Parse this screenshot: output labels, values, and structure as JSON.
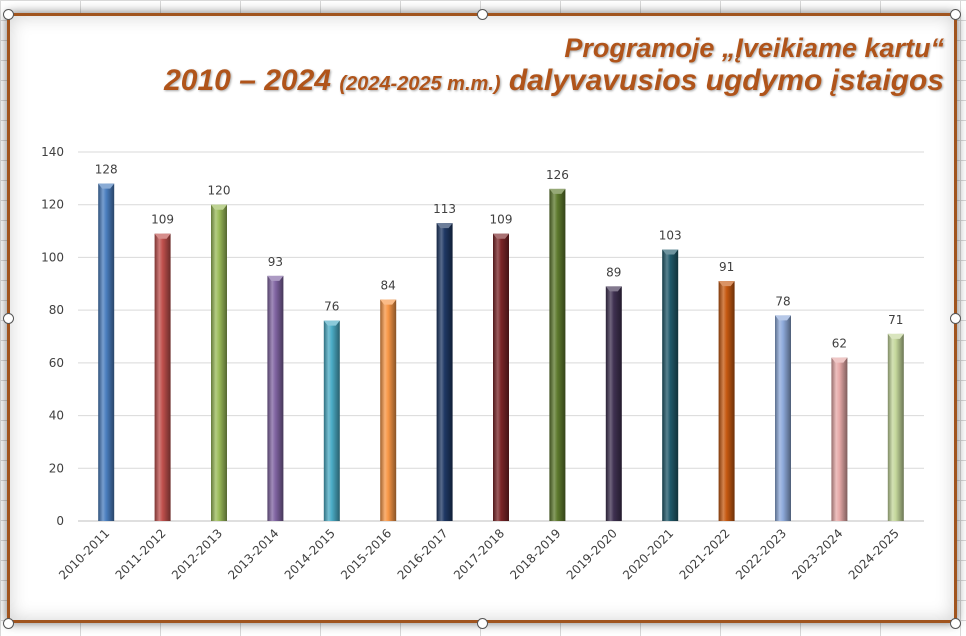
{
  "title_line1": "Programoje „Įveikiame kartu“",
  "title_line2_main": "2010 – 2024",
  "title_line2_paren": "(2024-2025 m.m.)",
  "title_line2_rest": "dalyvavusios ugdymo įstaigos",
  "accent_color": "#b0541a",
  "frame_color": "#a0541e",
  "chart_data": {
    "type": "bar",
    "categories": [
      "2010-2011",
      "2011-2012",
      "2012-2013",
      "2013-2014",
      "2014-2015",
      "2015-2016",
      "2016-2017",
      "2017-2018",
      "2018-2019",
      "2019-2020",
      "2020-2021",
      "2021-2022",
      "2022-2023",
      "2023-2024",
      "2024-2025"
    ],
    "values": [
      128,
      109,
      120,
      93,
      76,
      84,
      113,
      109,
      126,
      89,
      103,
      91,
      78,
      62,
      71
    ],
    "bar_colors": [
      "#4a7ebf",
      "#c0504d",
      "#9bbb59",
      "#8064a2",
      "#4bacc6",
      "#f79646",
      "#1f3864",
      "#7b2528",
      "#5e7a2e",
      "#3f3151",
      "#215a6b",
      "#c65911",
      "#8eaadb",
      "#e6a9a8",
      "#c4d79b"
    ],
    "title": "Programoje „Įveikiame kartu“ 2010 – 2024 (2024-2025 m.m.) dalyvavusios ugdymo įstaigos",
    "xlabel": "",
    "ylabel": "",
    "ylim": [
      0,
      140
    ],
    "yticks": [
      0,
      20,
      40,
      60,
      80,
      100,
      120,
      140
    ],
    "grid": true,
    "legend": "none",
    "data_labels": true
  }
}
